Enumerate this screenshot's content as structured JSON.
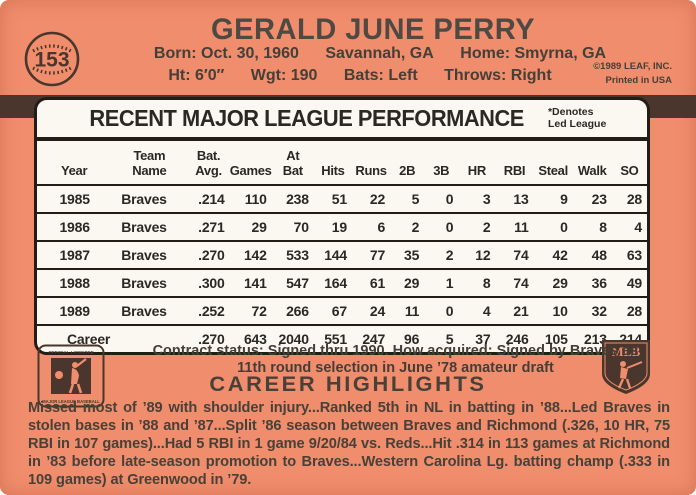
{
  "colors": {
    "background": "#F08D6C",
    "stripe": "#4A362C",
    "ink": "#46403A",
    "table_background": "#FBF8F1",
    "table_line": "#221D17"
  },
  "card": {
    "number": "153",
    "player_name": "GERALD JUNE PERRY",
    "bio_line1": [
      "Born: Oct. 30, 1960",
      "Savannah, GA",
      "Home: Smyrna, GA"
    ],
    "bio_line2": [
      "Ht: 6′0″",
      "Wgt: 190",
      "Bats: Left",
      "Throws: Right"
    ],
    "copyright_line1": "©1989 LEAF, INC.",
    "copyright_line2": "Printed in USA"
  },
  "table": {
    "title": "RECENT MAJOR LEAGUE PERFORMANCE",
    "denotes_line1": "*Denotes",
    "denotes_line2": "Led League",
    "headers": [
      "Year",
      "Team\nName",
      "Bat.\nAvg.",
      "Games",
      "At\nBat",
      "Hits",
      "Runs",
      "2B",
      "3B",
      "HR",
      "RBI",
      "Steal",
      "Walk",
      "SO"
    ],
    "rows": [
      [
        "1985",
        "Braves",
        ".214",
        "110",
        "238",
        "51",
        "22",
        "5",
        "0",
        "3",
        "13",
        "9",
        "23",
        "28"
      ],
      [
        "1986",
        "Braves",
        ".271",
        "29",
        "70",
        "19",
        "6",
        "2",
        "0",
        "2",
        "11",
        "0",
        "8",
        "4"
      ],
      [
        "1987",
        "Braves",
        ".270",
        "142",
        "533",
        "144",
        "77",
        "35",
        "2",
        "12",
        "74",
        "42",
        "48",
        "63"
      ],
      [
        "1988",
        "Braves",
        ".300",
        "141",
        "547",
        "164",
        "61",
        "29",
        "1",
        "8",
        "74",
        "29",
        "36",
        "49"
      ],
      [
        "1989",
        "Braves",
        ".252",
        "72",
        "266",
        "67",
        "24",
        "11",
        "0",
        "4",
        "21",
        "10",
        "32",
        "28"
      ],
      [
        "Career",
        "",
        ".270",
        "643",
        "2040",
        "551",
        "247",
        "96",
        "5",
        "37",
        "246",
        "105",
        "213",
        "214"
      ]
    ]
  },
  "footer": {
    "contract_line1": "Contract status: Signed thru 1990. How acquired: Signed by Braves as",
    "contract_line2": "11th round selection in June ’78 amateur draft",
    "career_highlights_title": "CAREER HIGHLIGHTS",
    "career_highlights_text": "Missed most of ’89 with shoulder injury...Ranked 5th in NL in batting in ’88...Led Braves in stolen bases in ’88 and ’87...Split ’86 season between Braves and Richmond (.326, 10 HR, 75 RBI in 107 games)...Had 5 RBI in 1 game 9/20/84 vs. Reds...Hit .314 in 113 games at Richmond in ’83 before late-season promotion to Braves...Western Carolina Lg. batting champ (.333 in 109 games) at Greenwood in ’79."
  },
  "logos": {
    "left": {
      "top_text": "OFFICIAL LICENSEE",
      "bottom_text": "MAJOR LEAGUE BASEBALL"
    },
    "right": {
      "text": "MLB"
    }
  }
}
